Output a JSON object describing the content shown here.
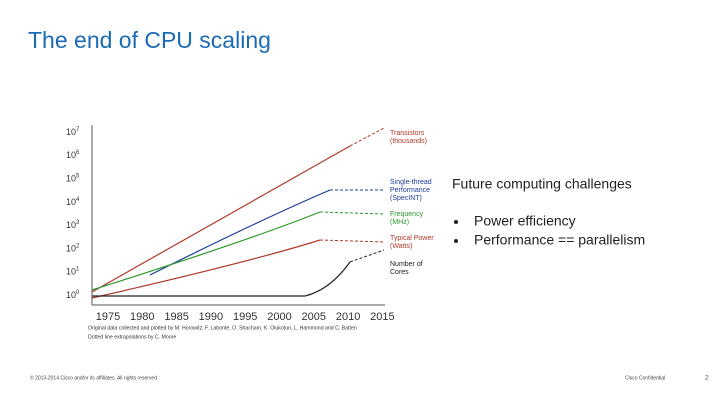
{
  "title": "The end of CPU scaling",
  "figure": {
    "yticks": [
      {
        "base": "10",
        "exponent": "0"
      },
      {
        "base": "10",
        "exponent": "1"
      },
      {
        "base": "10",
        "exponent": "2"
      },
      {
        "base": "10",
        "exponent": "3"
      },
      {
        "base": "10",
        "exponent": "4"
      },
      {
        "base": "10",
        "exponent": "5"
      },
      {
        "base": "10",
        "exponent": "6"
      },
      {
        "base": "10",
        "exponent": "7"
      }
    ],
    "xticks": [
      "1975",
      "1980",
      "1985",
      "1990",
      "1995",
      "2000",
      "2005",
      "2010",
      "2015"
    ],
    "legend": [
      {
        "lines": [
          "Transistors",
          "(thousands)"
        ]
      },
      {
        "lines": [
          "Single-thread",
          "Performance",
          "(SpecINT)"
        ]
      },
      {
        "lines": [
          "Frequency",
          "(MHz)"
        ]
      },
      {
        "lines": [
          "Typical Power",
          "(Watts)"
        ]
      },
      {
        "lines": [
          "Number of",
          "Cores"
        ]
      }
    ],
    "caption": [
      "Original data collected and plotted by M. Horowitz, F. Labonte, O. Shacham, K. Olukotun, L. Hammond and C. Batten",
      "Dotted line extrapolations by C. Moore"
    ]
  },
  "content": {
    "heading": "Future computing challenges",
    "bullets": [
      "Power efficiency",
      "Performance == parallelism"
    ]
  },
  "footer": {
    "copyright": "© 2013-2014 Cisco and/or its affiliates. All rights reserved.",
    "confidential": "Cisco Confidential",
    "page": "2"
  }
}
